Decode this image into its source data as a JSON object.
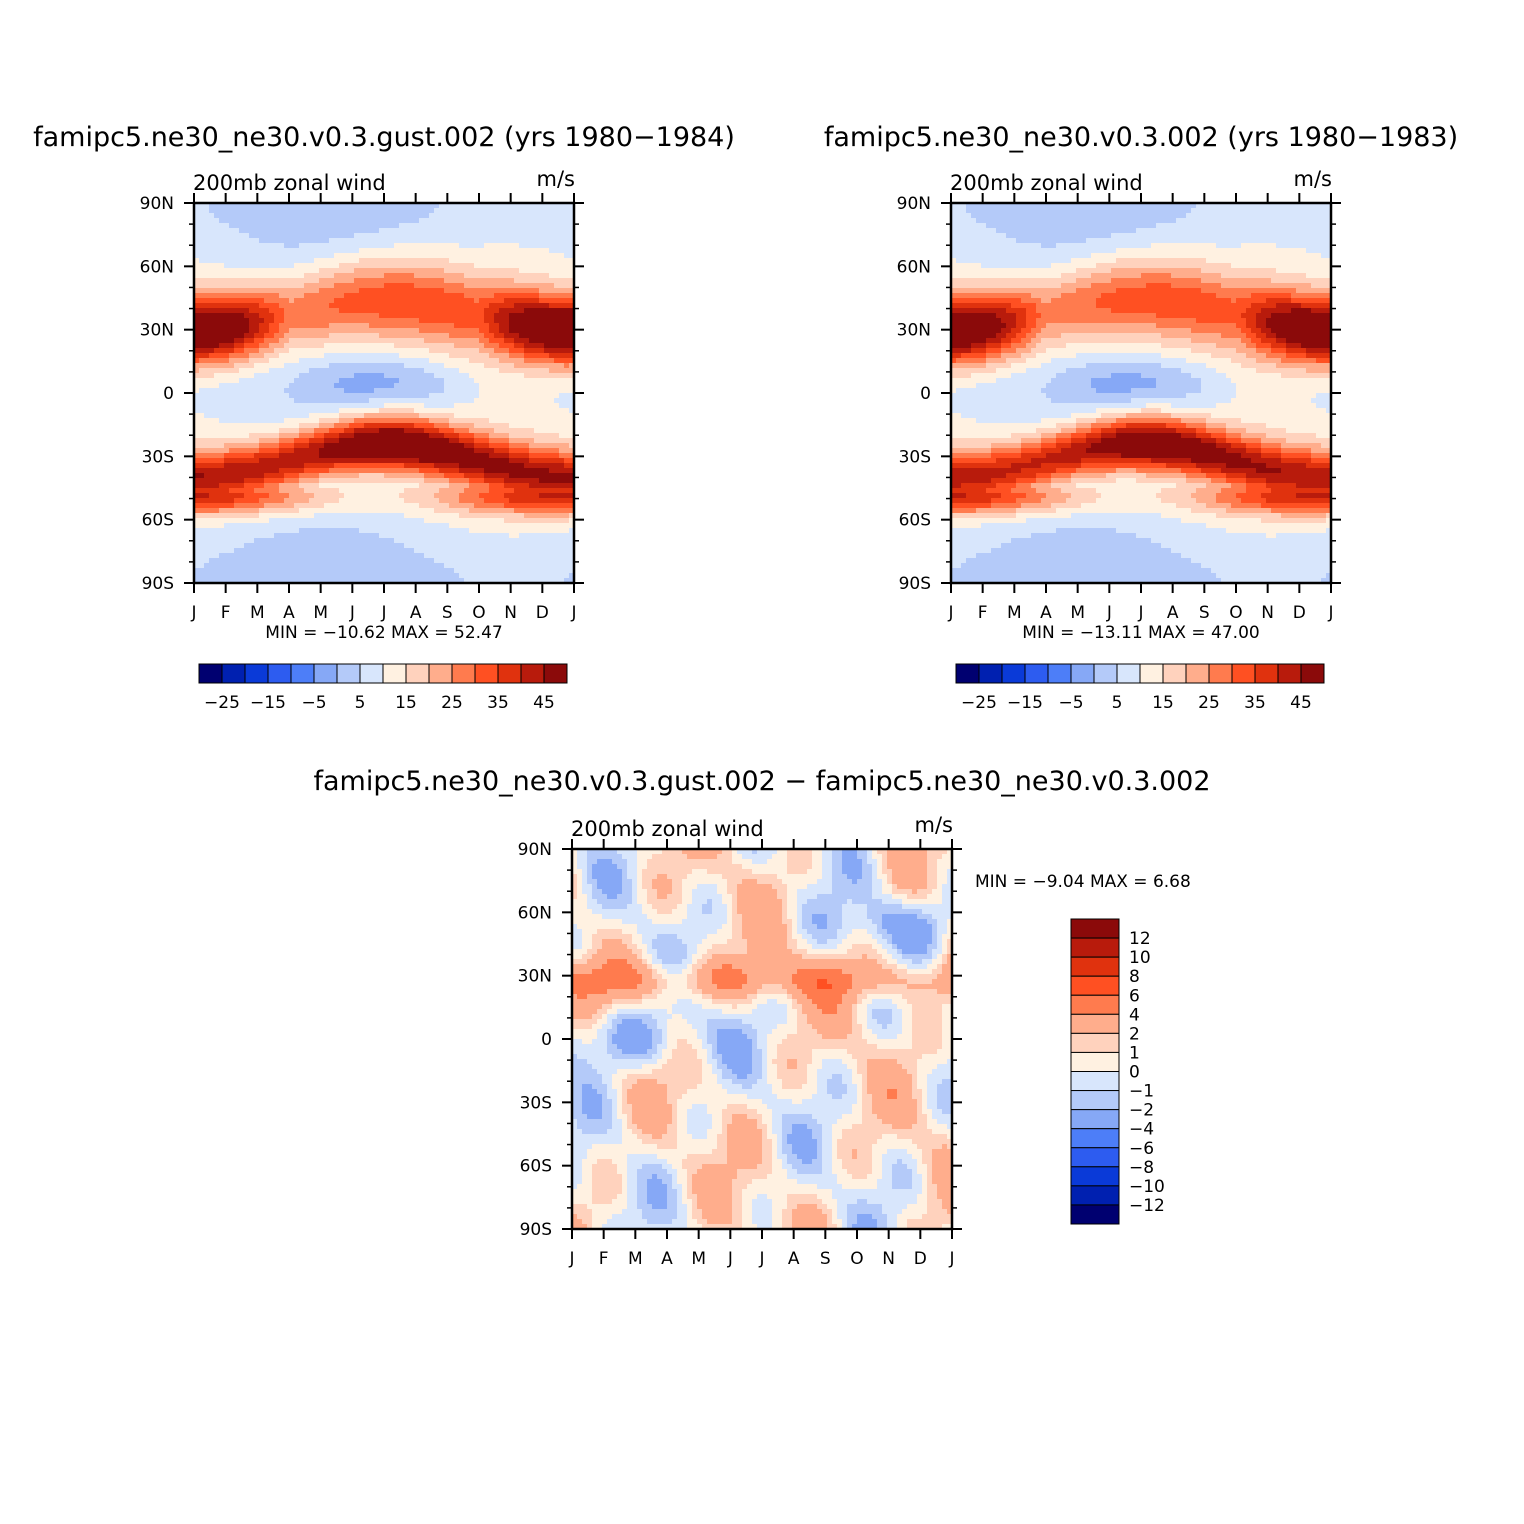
{
  "months": [
    "J",
    "F",
    "M",
    "A",
    "M",
    "J",
    "J",
    "A",
    "S",
    "O",
    "N",
    "D",
    "J"
  ],
  "lat_labels": [
    "90N",
    "60N",
    "30N",
    "0",
    "30S",
    "60S",
    "90S"
  ],
  "panels": [
    {
      "title": "famipc5.ne30_ne30.v0.3.gust.002 (yrs 1980−1984)",
      "subtitle": "200mb zonal wind",
      "units": "m/s",
      "minmax": "MIN = −10.62 MAX =   52.47"
    },
    {
      "title": "famipc5.ne30_ne30.v0.3.002 (yrs 1980−1983)",
      "subtitle": "200mb zonal wind",
      "units": "m/s",
      "minmax": "MIN = −13.11 MAX =   47.00"
    },
    {
      "title": "famipc5.ne30_ne30.v0.3.gust.002 − famipc5.ne30_ne30.v0.3.002",
      "subtitle": "200mb zonal wind",
      "units": "m/s",
      "minmax": "MIN =   −9.04 MAX =     6.68"
    }
  ],
  "colorbar_main": {
    "labels": [
      "−25",
      "−15",
      "−5",
      "5",
      "15",
      "25",
      "35",
      "45"
    ],
    "colors": [
      "#000070",
      "#0020b0",
      "#0a3ad8",
      "#2d5cf0",
      "#4d7ef8",
      "#86a8f6",
      "#b4caf9",
      "#d8e6fc",
      "#fff1e1",
      "#ffd2bd",
      "#ffad8c",
      "#ff7b4e",
      "#ff5022",
      "#e0320e",
      "#b81b0c",
      "#8b0a0a"
    ]
  },
  "colorbar_diff": {
    "labels": [
      "12",
      "10",
      "8",
      "6",
      "4",
      "2",
      "1",
      "0",
      "−1",
      "−2",
      "−4",
      "−6",
      "−8",
      "−10",
      "−12"
    ],
    "colors": [
      "#8b0a0a",
      "#b81b0c",
      "#e0320e",
      "#ff5022",
      "#ff7b4e",
      "#ffad8c",
      "#ffd2bd",
      "#fff1e1",
      "#d8e6fc",
      "#b4caf9",
      "#86a8f6",
      "#4d7ef8",
      "#2d5cf0",
      "#0a3ad8",
      "#0020b0",
      "#000070"
    ]
  },
  "chart_data": [
    {
      "type": "heatmap",
      "title": "famipc5.ne30_ne30.v0.3.gust.002 (yrs 1980−1984)",
      "subtitle": "200mb zonal wind",
      "units": "m/s",
      "x_categories": [
        "J",
        "F",
        "M",
        "A",
        "M",
        "J",
        "J",
        "A",
        "S",
        "O",
        "N",
        "D",
        "J"
      ],
      "y_range": [
        -90,
        90
      ],
      "y_ticks": [
        "90N",
        "60N",
        "30N",
        "0",
        "30S",
        "60S",
        "90S"
      ],
      "levels": [
        -30,
        -25,
        -20,
        -15,
        -10,
        -5,
        0,
        5,
        10,
        15,
        20,
        25,
        30,
        35,
        40,
        45,
        50
      ],
      "min": -10.62,
      "max": 52.47
    },
    {
      "type": "heatmap",
      "title": "famipc5.ne30_ne30.v0.3.002 (yrs 1980−1983)",
      "subtitle": "200mb zonal wind",
      "units": "m/s",
      "x_categories": [
        "J",
        "F",
        "M",
        "A",
        "M",
        "J",
        "J",
        "A",
        "S",
        "O",
        "N",
        "D",
        "J"
      ],
      "y_range": [
        -90,
        90
      ],
      "y_ticks": [
        "90N",
        "60N",
        "30N",
        "0",
        "30S",
        "60S",
        "90S"
      ],
      "levels": [
        -30,
        -25,
        -20,
        -15,
        -10,
        -5,
        0,
        5,
        10,
        15,
        20,
        25,
        30,
        35,
        40,
        45,
        50
      ],
      "min": -13.11,
      "max": 47.0
    },
    {
      "type": "heatmap",
      "title": "famipc5.ne30_ne30.v0.3.gust.002 − famipc5.ne30_ne30.v0.3.002",
      "subtitle": "200mb zonal wind",
      "units": "m/s",
      "x_categories": [
        "J",
        "F",
        "M",
        "A",
        "M",
        "J",
        "J",
        "A",
        "S",
        "O",
        "N",
        "D",
        "J"
      ],
      "y_range": [
        -90,
        90
      ],
      "y_ticks": [
        "90N",
        "60N",
        "30N",
        "0",
        "30S",
        "60S",
        "90S"
      ],
      "levels": [
        -12,
        -10,
        -8,
        -6,
        -4,
        -2,
        -1,
        0,
        1,
        2,
        4,
        6,
        8,
        10,
        12
      ],
      "min": -9.04,
      "max": 6.68
    }
  ]
}
